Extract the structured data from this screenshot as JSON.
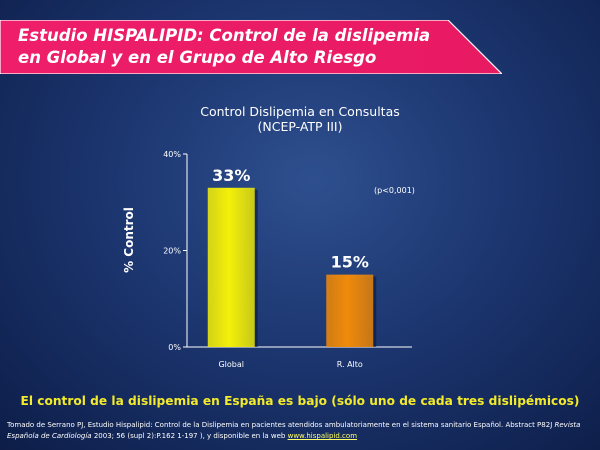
{
  "header": {
    "title_line1": "Estudio HISPALIPID: Control de la dislipemia",
    "title_line2": "en Global  y en el Grupo de Alto Riesgo",
    "banner_color": "#ee1e6a"
  },
  "chart_data": {
    "type": "bar",
    "title_line1": "Control Dislipemia en Consultas",
    "title_line2": "(NCEP-ATP III)",
    "ylabel": "% Control",
    "categories": [
      "Global",
      "R. Alto"
    ],
    "values": [
      33,
      15
    ],
    "data_labels": [
      "33%",
      "15%"
    ],
    "ylim": [
      0,
      40
    ],
    "yticks": [
      "0%",
      "20%",
      "40%"
    ],
    "ytick_values": [
      0,
      20,
      40
    ],
    "annotation": "(p<0,001)",
    "bar_colors": [
      "#f4f00a",
      "#f08a0a"
    ],
    "grid": false
  },
  "conclusion": "El control de la dislipemia en España es bajo (sólo uno de cada tres dislipémicos)",
  "footnote": {
    "part1": "Tomado de Serrano PJ, Estudio Hispalipid: Control de la Dislipemia en pacientes atendidos ambulatoriamente en el sistema sanitario Español. Abstract P82J",
    "journal": "Revista Española de Cardiología",
    "part2": "2003; 56 (supl 2):P.162 1-197 ), y disponible en la web",
    "link": "www.hispalipid.com"
  }
}
